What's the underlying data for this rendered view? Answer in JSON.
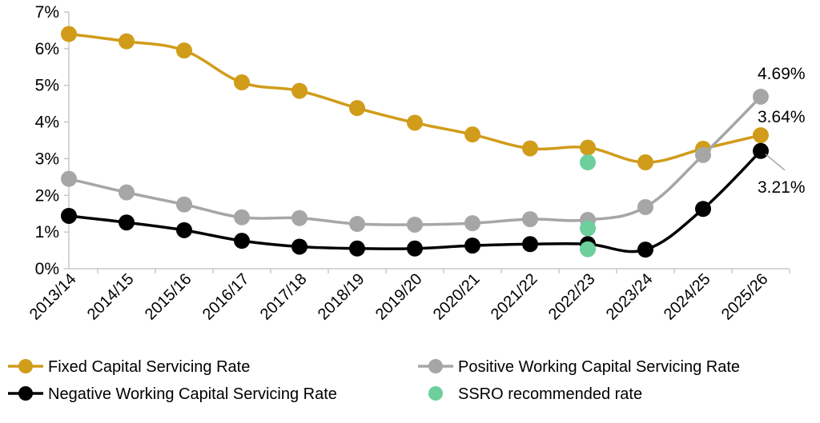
{
  "chart_data": {
    "type": "line",
    "categories": [
      "2013/14",
      "2014/15",
      "2015/16",
      "2016/17",
      "2017/18",
      "2018/19",
      "2019/20",
      "2020/21",
      "2021/22",
      "2022/23",
      "2023/24",
      "2024/25",
      "2025/26"
    ],
    "y_ticks": [
      "0%",
      "1%",
      "2%",
      "3%",
      "4%",
      "5%",
      "6%",
      "7%"
    ],
    "ylim": [
      0,
      7
    ],
    "grid": false,
    "legend_position": "bottom",
    "series": [
      {
        "name": "Fixed Capital Servicing Rate",
        "color": "#D09C1A",
        "values": [
          6.4,
          6.2,
          5.95,
          5.08,
          4.85,
          4.38,
          3.98,
          3.66,
          3.28,
          3.3,
          2.9,
          3.27,
          3.64
        ]
      },
      {
        "name": "Positive Working Capital Servicing Rate",
        "color": "#A6A6A6",
        "values": [
          2.45,
          2.08,
          1.75,
          1.4,
          1.38,
          1.22,
          1.2,
          1.24,
          1.35,
          1.33,
          1.68,
          3.1,
          4.69
        ]
      },
      {
        "name": "Negative Working Capital Servicing Rate",
        "color": "#000000",
        "values": [
          1.44,
          1.26,
          1.05,
          0.76,
          0.6,
          0.55,
          0.55,
          0.63,
          0.67,
          0.67,
          0.52,
          1.63,
          3.21
        ]
      }
    ],
    "ssro": {
      "name": "SSRO recommended rate",
      "color": "#6CCF9C",
      "points": [
        {
          "x": "2022/23",
          "y": 2.9
        },
        {
          "x": "2022/23",
          "y": 1.1
        },
        {
          "x": "2022/23",
          "y": 0.53
        }
      ]
    },
    "annotations": [
      {
        "text": "4.69%",
        "series": 1,
        "category": "2025/26",
        "value": 4.69
      },
      {
        "text": "3.64%",
        "series": 0,
        "category": "2025/26",
        "value": 3.64
      },
      {
        "text": "3.21%",
        "series": 2,
        "category": "2025/26",
        "value": 3.21
      }
    ]
  }
}
